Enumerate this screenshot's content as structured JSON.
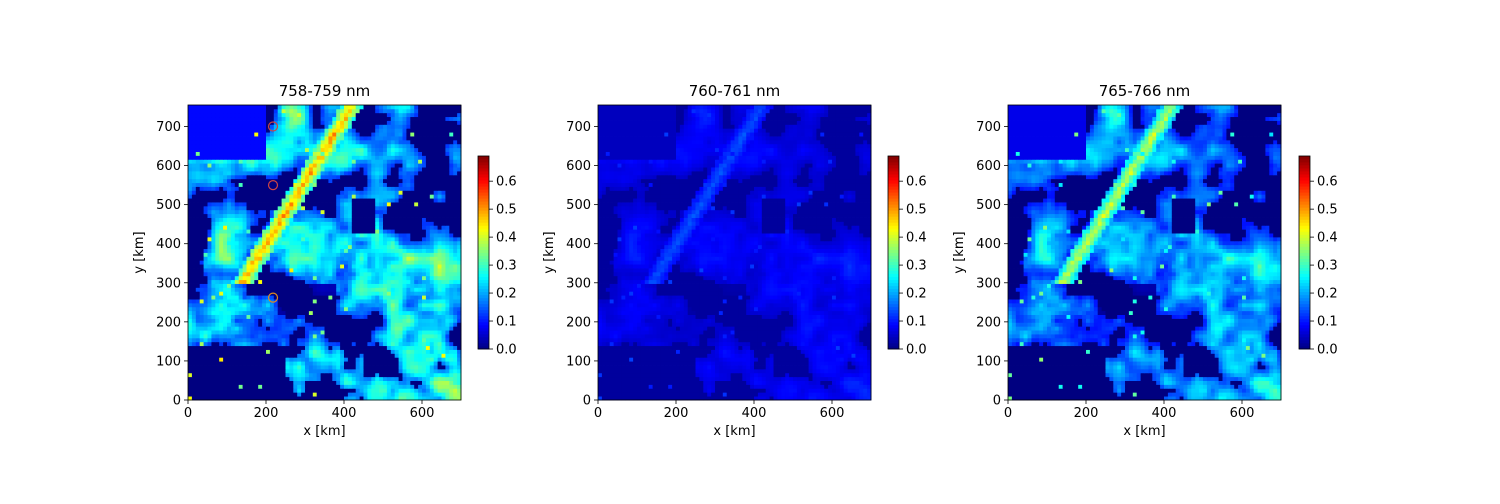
{
  "chart_data": [
    {
      "type": "heatmap",
      "title": "758-759 nm",
      "xlabel": "x [km]",
      "ylabel": "y [km]",
      "xlim": [
        0,
        700
      ],
      "ylim": [
        0,
        755
      ],
      "xticks": [
        0,
        200,
        400,
        600
      ],
      "yticks": [
        0,
        100,
        200,
        300,
        400,
        500,
        600,
        700
      ],
      "colormap": "jet",
      "clim": [
        0,
        0.69
      ],
      "colorbar_ticks": [
        0.0,
        0.1,
        0.2,
        0.3,
        0.4,
        0.5,
        0.6
      ],
      "colorbar_ticklabels": [
        "0.0",
        "0.1",
        "0.2",
        "0.3",
        "0.4",
        "0.5",
        "0.6"
      ],
      "intensity": 1.0,
      "markers": [
        {
          "x": 218,
          "y": 700,
          "color": "#cc4444"
        },
        {
          "x": 218,
          "y": 550,
          "color": "#cc4444"
        },
        {
          "x": 218,
          "y": 262,
          "color": "#e08a1e"
        }
      ]
    },
    {
      "type": "heatmap",
      "title": "760-761 nm",
      "xlabel": "x [km]",
      "ylabel": "y [km]",
      "xlim": [
        0,
        700
      ],
      "ylim": [
        0,
        755
      ],
      "xticks": [
        0,
        200,
        400,
        600
      ],
      "yticks": [
        0,
        100,
        200,
        300,
        400,
        500,
        600,
        700
      ],
      "colormap": "jet",
      "clim": [
        0,
        0.69
      ],
      "colorbar_ticks": [
        0.0,
        0.1,
        0.2,
        0.3,
        0.4,
        0.5,
        0.6
      ],
      "colorbar_ticklabels": [
        "0.0",
        "0.1",
        "0.2",
        "0.3",
        "0.4",
        "0.5",
        "0.6"
      ],
      "intensity": 0.35,
      "markers": []
    },
    {
      "type": "heatmap",
      "title": "765-766 nm",
      "xlabel": "x [km]",
      "ylabel": "y [km]",
      "xlim": [
        0,
        700
      ],
      "ylim": [
        0,
        755
      ],
      "xticks": [
        0,
        200,
        400,
        600
      ],
      "yticks": [
        0,
        100,
        200,
        300,
        400,
        500,
        600,
        700
      ],
      "colormap": "jet",
      "clim": [
        0,
        0.69
      ],
      "colorbar_ticks": [
        0.0,
        0.1,
        0.2,
        0.3,
        0.4,
        0.5,
        0.6
      ],
      "colorbar_ticklabels": [
        "0.0",
        "0.1",
        "0.2",
        "0.3",
        "0.4",
        "0.5",
        "0.6"
      ],
      "intensity": 0.8,
      "markers": []
    }
  ]
}
